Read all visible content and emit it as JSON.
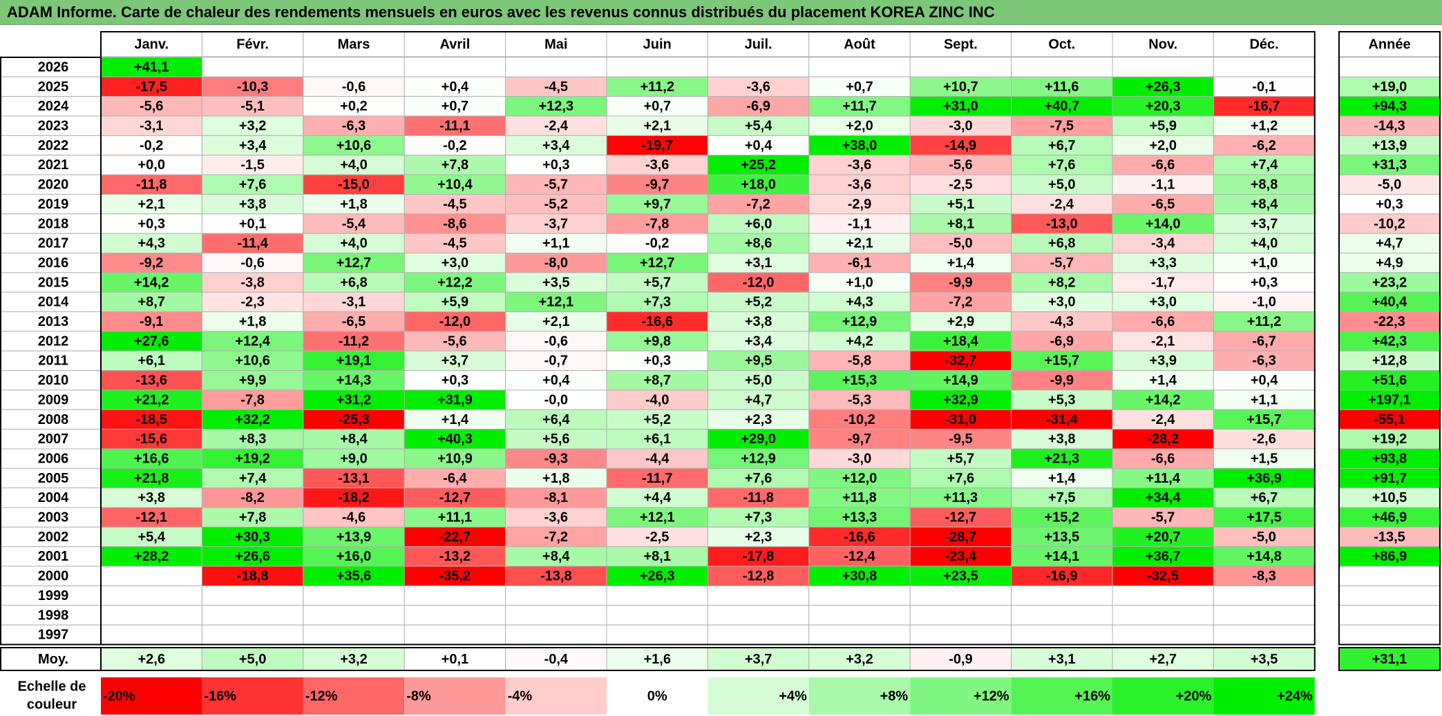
{
  "title": "ADAM Informe. Carte de chaleur des rendements mensuels en euros avec les revenus connus distribués du placement KOREA ZINC INC",
  "chart_data": {
    "type": "heatmap",
    "title": "ADAM Informe. Carte de chaleur des rendements mensuels en euros avec les revenus connus distribués du placement KOREA ZINC INC",
    "columns": [
      "Janv.",
      "Févr.",
      "Mars",
      "Avril",
      "Mai",
      "Juin",
      "Juil.",
      "Août",
      "Sept.",
      "Oct.",
      "Nov.",
      "Déc."
    ],
    "year_column_label": "Année",
    "rows": [
      {
        "year": "2026",
        "values": [
          "+41,1",
          "",
          "",
          "",
          "",
          "",
          "",
          "",
          "",
          "",
          "",
          ""
        ],
        "annual": ""
      },
      {
        "year": "2025",
        "values": [
          "-17,5",
          "-10,3",
          "-0,6",
          "+0,4",
          "-4,5",
          "+11,2",
          "-3,6",
          "+0,7",
          "+10,7",
          "+11,6",
          "+26,3",
          "-0,1"
        ],
        "annual": "+19,0"
      },
      {
        "year": "2024",
        "values": [
          "-5,6",
          "-5,1",
          "+0,2",
          "+0,7",
          "+12,3",
          "+0,7",
          "-6,9",
          "+11,7",
          "+31,0",
          "+40,7",
          "+20,3",
          "-16,7"
        ],
        "annual": "+94,3"
      },
      {
        "year": "2023",
        "values": [
          "-3,1",
          "+3,2",
          "-6,3",
          "-11,1",
          "-2,4",
          "+2,1",
          "+5,4",
          "+2,0",
          "-3,0",
          "-7,5",
          "+5,9",
          "+1,2"
        ],
        "annual": "-14,3"
      },
      {
        "year": "2022",
        "values": [
          "-0,2",
          "+3,4",
          "+10,6",
          "-0,2",
          "+3,4",
          "-19,7",
          "+0,4",
          "+38,0",
          "-14,9",
          "+6,7",
          "+2,0",
          "-6,2"
        ],
        "annual": "+13,9"
      },
      {
        "year": "2021",
        "values": [
          "+0,0",
          "-1,5",
          "+4,0",
          "+7,8",
          "+0,3",
          "-3,6",
          "+25,2",
          "-3,6",
          "-5,6",
          "+7,6",
          "-6,6",
          "+7,4"
        ],
        "annual": "+31,3"
      },
      {
        "year": "2020",
        "values": [
          "-11,8",
          "+7,6",
          "-15,0",
          "+10,4",
          "-5,7",
          "-9,7",
          "+18,0",
          "-3,6",
          "-2,5",
          "+5,0",
          "-1,1",
          "+8,8"
        ],
        "annual": "-5,0"
      },
      {
        "year": "2019",
        "values": [
          "+2,1",
          "+3,8",
          "+1,8",
          "-4,5",
          "-5,2",
          "+9,7",
          "-7,2",
          "-2,9",
          "+5,1",
          "-2,4",
          "-6,5",
          "+8,4"
        ],
        "annual": "+0,3"
      },
      {
        "year": "2018",
        "values": [
          "+0,3",
          "+0,1",
          "-5,4",
          "-8,6",
          "-3,7",
          "-7,8",
          "+6,0",
          "-1,1",
          "+8,1",
          "-13,0",
          "+14,0",
          "+3,7"
        ],
        "annual": "-10,2"
      },
      {
        "year": "2017",
        "values": [
          "+4,3",
          "-11,4",
          "+4,0",
          "-4,5",
          "+1,1",
          "-0,2",
          "+8,6",
          "+2,1",
          "-5,0",
          "+6,8",
          "-3,4",
          "+4,0"
        ],
        "annual": "+4,7"
      },
      {
        "year": "2016",
        "values": [
          "-9,2",
          "-0,6",
          "+12,7",
          "+3,0",
          "-8,0",
          "+12,7",
          "+3,1",
          "-6,1",
          "+1,4",
          "-5,7",
          "+3,3",
          "+1,0"
        ],
        "annual": "+4,9"
      },
      {
        "year": "2015",
        "values": [
          "+14,2",
          "-3,8",
          "+6,8",
          "+12,2",
          "+3,5",
          "+5,7",
          "-12,0",
          "+1,0",
          "-9,9",
          "+8,2",
          "-1,7",
          "+0,3"
        ],
        "annual": "+23,2"
      },
      {
        "year": "2014",
        "values": [
          "+8,7",
          "-2,3",
          "-3,1",
          "+5,9",
          "+12,1",
          "+7,3",
          "+5,2",
          "+4,3",
          "-7,2",
          "+3,0",
          "+3,0",
          "-1,0"
        ],
        "annual": "+40,4"
      },
      {
        "year": "2013",
        "values": [
          "-9,1",
          "+1,8",
          "-6,5",
          "-12,0",
          "+2,1",
          "-16,6",
          "+3,8",
          "+12,9",
          "+2,9",
          "-4,3",
          "-6,6",
          "+11,2"
        ],
        "annual": "-22,3"
      },
      {
        "year": "2012",
        "values": [
          "+27,6",
          "+12,4",
          "-11,2",
          "-5,6",
          "-0,6",
          "+9,8",
          "+3,4",
          "+4,2",
          "+18,4",
          "-6,9",
          "-2,1",
          "-6,7"
        ],
        "annual": "+42,3"
      },
      {
        "year": "2011",
        "values": [
          "+6,1",
          "+10,6",
          "+19,1",
          "+3,7",
          "-0,7",
          "+0,3",
          "+9,5",
          "-5,8",
          "-32,7",
          "+15,7",
          "+3,9",
          "-6,3"
        ],
        "annual": "+12,8"
      },
      {
        "year": "2010",
        "values": [
          "-13,6",
          "+9,9",
          "+14,3",
          "+0,3",
          "+0,4",
          "+8,7",
          "+5,0",
          "+15,3",
          "+14,9",
          "-9,9",
          "+1,4",
          "+0,4"
        ],
        "annual": "+51,6"
      },
      {
        "year": "2009",
        "values": [
          "+21,2",
          "-7,8",
          "+31,2",
          "+31,9",
          "-0,0",
          "-4,0",
          "+4,7",
          "-5,3",
          "+32,9",
          "+5,3",
          "+14,2",
          "+1,1"
        ],
        "annual": "+197,1"
      },
      {
        "year": "2008",
        "values": [
          "-18,5",
          "+32,2",
          "-25,3",
          "+1,4",
          "+6,4",
          "+5,2",
          "+2,3",
          "-10,2",
          "-31,0",
          "-31,4",
          "-2,4",
          "+15,7"
        ],
        "annual": "-55,1"
      },
      {
        "year": "2007",
        "values": [
          "-15,6",
          "+8,3",
          "+8,4",
          "+40,3",
          "+5,6",
          "+6,1",
          "+29,0",
          "-9,7",
          "-9,5",
          "+3,8",
          "-28,2",
          "-2,6"
        ],
        "annual": "+19,2"
      },
      {
        "year": "2006",
        "values": [
          "+16,6",
          "+19,2",
          "+9,0",
          "+10,9",
          "-9,3",
          "-4,4",
          "+12,9",
          "-3,0",
          "+5,7",
          "+21,3",
          "-6,6",
          "+1,5"
        ],
        "annual": "+93,8"
      },
      {
        "year": "2005",
        "values": [
          "+21,8",
          "+7,4",
          "-13,1",
          "-6,4",
          "+1,8",
          "-11,7",
          "+7,6",
          "+12,0",
          "+7,6",
          "+1,4",
          "+11,4",
          "+36,9"
        ],
        "annual": "+91,7"
      },
      {
        "year": "2004",
        "values": [
          "+3,8",
          "-8,2",
          "-18,2",
          "-12,7",
          "-8,1",
          "+4,4",
          "-11,8",
          "+11,8",
          "+11,3",
          "+7,5",
          "+34,4",
          "+6,7"
        ],
        "annual": "+10,5"
      },
      {
        "year": "2003",
        "values": [
          "-12,1",
          "+7,8",
          "-4,6",
          "+11,1",
          "-3,6",
          "+12,1",
          "+7,3",
          "+13,3",
          "-12,7",
          "+15,2",
          "-5,7",
          "+17,5"
        ],
        "annual": "+46,9"
      },
      {
        "year": "2002",
        "values": [
          "+5,4",
          "+30,3",
          "+13,9",
          "-22,7",
          "-7,2",
          "-2,5",
          "+2,3",
          "-16,6",
          "-28,7",
          "+13,5",
          "+20,7",
          "-5,0"
        ],
        "annual": "-13,5"
      },
      {
        "year": "2001",
        "values": [
          "+28,2",
          "+26,6",
          "+16,0",
          "-13,2",
          "+8,4",
          "+8,1",
          "-17,8",
          "-12,4",
          "-23,4",
          "+14,1",
          "+36,7",
          "+14,8"
        ],
        "annual": "+86,9"
      },
      {
        "year": "2000",
        "values": [
          "",
          "-18,8",
          "+35,6",
          "-35,2",
          "-13,8",
          "+26,3",
          "-12,8",
          "+30,8",
          "+23,5",
          "-16,9",
          "-32,5",
          "-8,3"
        ],
        "annual": ""
      },
      {
        "year": "1999",
        "values": [
          "",
          "",
          "",
          "",
          "",
          "",
          "",
          "",
          "",
          "",
          "",
          ""
        ],
        "annual": ""
      },
      {
        "year": "1998",
        "values": [
          "",
          "",
          "",
          "",
          "",
          "",
          "",
          "",
          "",
          "",
          "",
          ""
        ],
        "annual": ""
      },
      {
        "year": "1997",
        "values": [
          "",
          "",
          "",
          "",
          "",
          "",
          "",
          "",
          "",
          "",
          "",
          ""
        ],
        "annual": ""
      }
    ],
    "average": {
      "label": "Moy.",
      "values": [
        "+2,6",
        "+5,0",
        "+3,2",
        "+0,1",
        "-0,4",
        "+1,6",
        "+3,7",
        "+3,2",
        "-0,9",
        "+3,1",
        "+2,7",
        "+3,5"
      ],
      "annual": "+31,1"
    },
    "color_scale": {
      "label_line1": "Echelle de",
      "label_line2": "couleur",
      "stops": [
        "-20%",
        "-16%",
        "-12%",
        "-8%",
        "-4%",
        "0%",
        "+4%",
        "+8%",
        "+12%",
        "+16%",
        "+20%",
        "+24%"
      ],
      "stop_values": [
        -20,
        -16,
        -12,
        -8,
        -4,
        0,
        4,
        8,
        12,
        16,
        20,
        24
      ]
    },
    "colors": {
      "negative_max": "#ff0000",
      "neutral": "#ffffff",
      "positive_max": "#00ee00",
      "title_bg": "#7cc878"
    }
  }
}
